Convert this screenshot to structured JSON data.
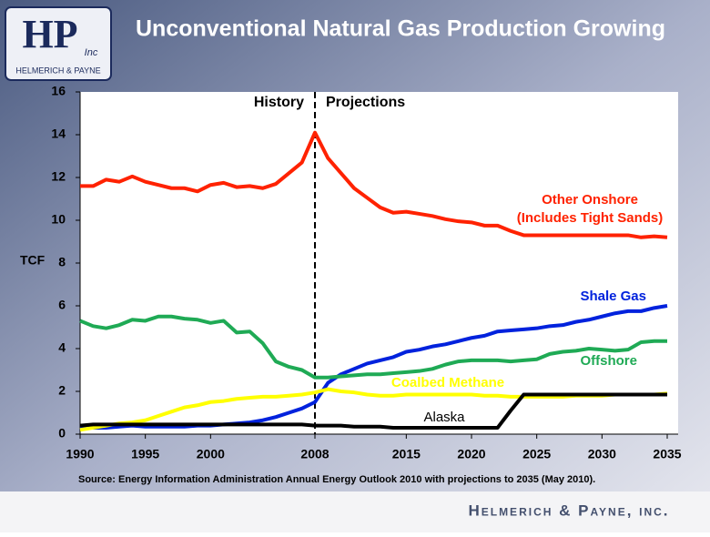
{
  "page": {
    "title": "Unconventional Natural Gas Production Growing",
    "logo_main": "HP",
    "logo_sub": "Inc",
    "logo_name": "HELMERICH & PAYNE",
    "footer": "Helmerich & Payne, inc."
  },
  "chart_data": {
    "type": "line",
    "y_label": "TCF",
    "annotations": [
      "History",
      "Projections"
    ],
    "source": "Source: Energy Information Administration Annual Energy Outlook 2010 with projections to 2035 (May 2010).",
    "divider": 2008,
    "x": [
      1990,
      1991,
      1992,
      1993,
      1994,
      1995,
      1996,
      1997,
      1998,
      1999,
      2000,
      2001,
      2002,
      2003,
      2004,
      2005,
      2006,
      2007,
      2008,
      2009,
      2010,
      2011,
      2012,
      2013,
      2014,
      2015,
      2016,
      2017,
      2018,
      2019,
      2020,
      2021,
      2022,
      2023,
      2024,
      2025,
      2026,
      2027,
      2028,
      2029,
      2030,
      2031,
      2032,
      2033,
      2034,
      2035
    ],
    "xlim": [
      1990,
      2035
    ],
    "xticks": [
      1990,
      1995,
      2000,
      2008,
      2015,
      2020,
      2025,
      2030,
      2035
    ],
    "ylim": [
      0,
      16
    ],
    "yticks": [
      0,
      2,
      4,
      6,
      8,
      10,
      12,
      14,
      16
    ],
    "series": [
      {
        "name": "Other Onshore (Includes Tight Sands)",
        "color": "#ff2200",
        "values": [
          11.6,
          11.6,
          11.9,
          11.8,
          12.05,
          11.8,
          11.65,
          11.5,
          11.5,
          11.35,
          11.65,
          11.75,
          11.55,
          11.6,
          11.5,
          11.7,
          12.2,
          12.7,
          14.1,
          12.9,
          12.2,
          11.5,
          11.05,
          10.6,
          10.35,
          10.4,
          10.3,
          10.2,
          10.05,
          9.95,
          9.9,
          9.75,
          9.75,
          9.5,
          9.3,
          9.3,
          9.3,
          9.3,
          9.3,
          9.3,
          9.3,
          9.3,
          9.3,
          9.2,
          9.25,
          9.2
        ]
      },
      {
        "name": "Shale Gas",
        "color": "#0022dd",
        "values": [
          0.3,
          0.3,
          0.3,
          0.35,
          0.4,
          0.35,
          0.35,
          0.35,
          0.35,
          0.4,
          0.4,
          0.45,
          0.5,
          0.55,
          0.65,
          0.8,
          1.0,
          1.2,
          1.5,
          2.4,
          2.8,
          3.05,
          3.3,
          3.45,
          3.6,
          3.85,
          3.95,
          4.1,
          4.2,
          4.35,
          4.5,
          4.6,
          4.8,
          4.85,
          4.9,
          4.95,
          5.05,
          5.1,
          5.25,
          5.35,
          5.5,
          5.65,
          5.75,
          5.75,
          5.9,
          6.0
        ]
      },
      {
        "name": "Offshore",
        "color": "#1faa55",
        "values": [
          5.3,
          5.05,
          4.95,
          5.1,
          5.35,
          5.3,
          5.5,
          5.5,
          5.4,
          5.35,
          5.2,
          5.3,
          4.75,
          4.8,
          4.25,
          3.4,
          3.15,
          3.0,
          2.65,
          2.65,
          2.7,
          2.75,
          2.8,
          2.8,
          2.85,
          2.9,
          2.95,
          3.05,
          3.25,
          3.4,
          3.45,
          3.45,
          3.45,
          3.4,
          3.45,
          3.5,
          3.75,
          3.85,
          3.9,
          4.0,
          3.95,
          3.9,
          3.95,
          4.3,
          4.35,
          4.35
        ]
      },
      {
        "name": "Coalbed Methane",
        "color": "#ffff00",
        "values": [
          0.2,
          0.3,
          0.4,
          0.5,
          0.55,
          0.65,
          0.85,
          1.05,
          1.25,
          1.35,
          1.5,
          1.55,
          1.65,
          1.7,
          1.75,
          1.75,
          1.8,
          1.85,
          1.95,
          2.1,
          2.0,
          1.95,
          1.85,
          1.8,
          1.8,
          1.85,
          1.85,
          1.85,
          1.85,
          1.85,
          1.85,
          1.8,
          1.8,
          1.75,
          1.75,
          1.75,
          1.75,
          1.75,
          1.8,
          1.8,
          1.8,
          1.85,
          1.85,
          1.85,
          1.85,
          1.9
        ]
      },
      {
        "name": "Alaska",
        "color": "#000000",
        "values": [
          0.4,
          0.45,
          0.45,
          0.45,
          0.45,
          0.45,
          0.45,
          0.45,
          0.45,
          0.45,
          0.45,
          0.45,
          0.45,
          0.45,
          0.45,
          0.45,
          0.45,
          0.45,
          0.4,
          0.4,
          0.4,
          0.35,
          0.35,
          0.35,
          0.3,
          0.3,
          0.3,
          0.3,
          0.3,
          0.3,
          0.3,
          0.3,
          0.3,
          1.1,
          1.85,
          1.85,
          1.85,
          1.85,
          1.85,
          1.85,
          1.85,
          1.85,
          1.85,
          1.85,
          1.85,
          1.85
        ]
      }
    ]
  }
}
